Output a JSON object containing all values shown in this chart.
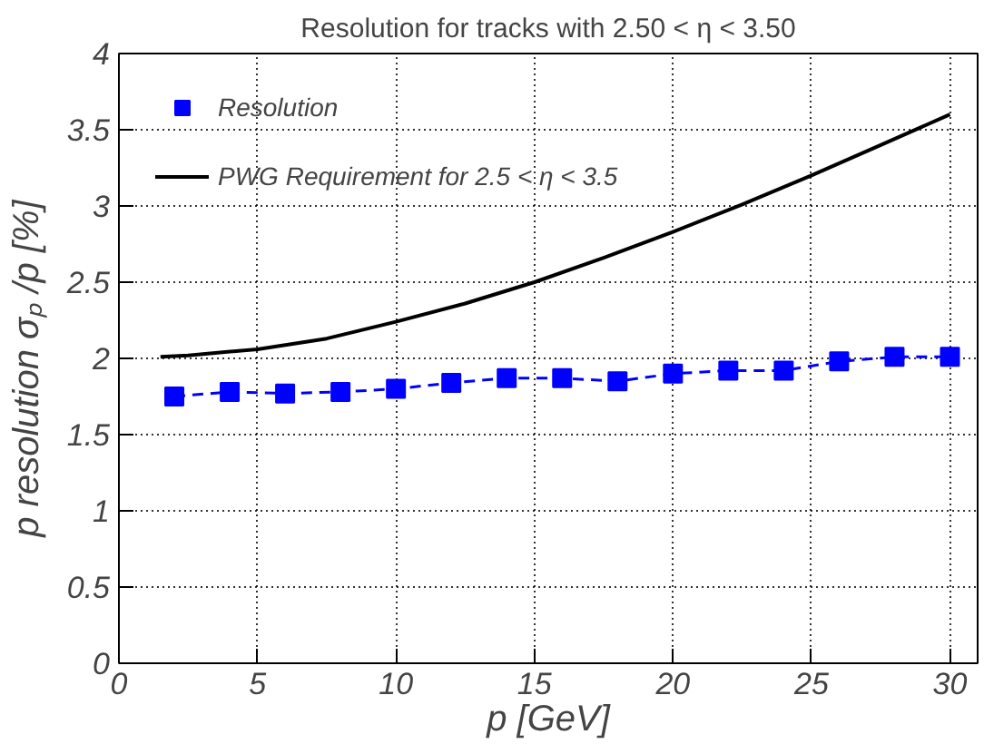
{
  "chart_data": {
    "type": "line",
    "title": "Resolution for tracks with 2.50 < η < 3.50",
    "xlabel": "p [GeV]",
    "ylabel": "p resolution   σₚ /p [%]",
    "xlim": [
      0,
      31
    ],
    "ylim": [
      0,
      4
    ],
    "xticks": [
      0,
      5,
      10,
      15,
      20,
      25,
      30
    ],
    "yticks": [
      0,
      0.5,
      1,
      1.5,
      2,
      2.5,
      3,
      3.5,
      4
    ],
    "grid": true,
    "legend": "top left",
    "series": [
      {
        "name": "Resolution",
        "color": "#0000ff",
        "marker": "square",
        "line_style": "dashed",
        "x": [
          2,
          4,
          6,
          8,
          10,
          12,
          14,
          16,
          18,
          20,
          22,
          24,
          26,
          28,
          30
        ],
        "values": [
          1.75,
          1.78,
          1.77,
          1.78,
          1.8,
          1.84,
          1.87,
          1.87,
          1.85,
          1.9,
          1.92,
          1.92,
          1.98,
          2.01,
          2.01
        ]
      },
      {
        "name": "PWG Requirement for 2.5 < η < 3.5",
        "color": "#000000",
        "marker": "none",
        "line_style": "solid",
        "x": [
          1.5,
          2.5,
          5,
          7.5,
          10,
          12.5,
          15,
          17.5,
          20,
          22.5,
          25,
          27.5,
          30
        ],
        "values": [
          2.01,
          2.02,
          2.06,
          2.13,
          2.24,
          2.36,
          2.5,
          2.66,
          2.83,
          3.01,
          3.2,
          3.4,
          3.6
        ]
      }
    ]
  }
}
